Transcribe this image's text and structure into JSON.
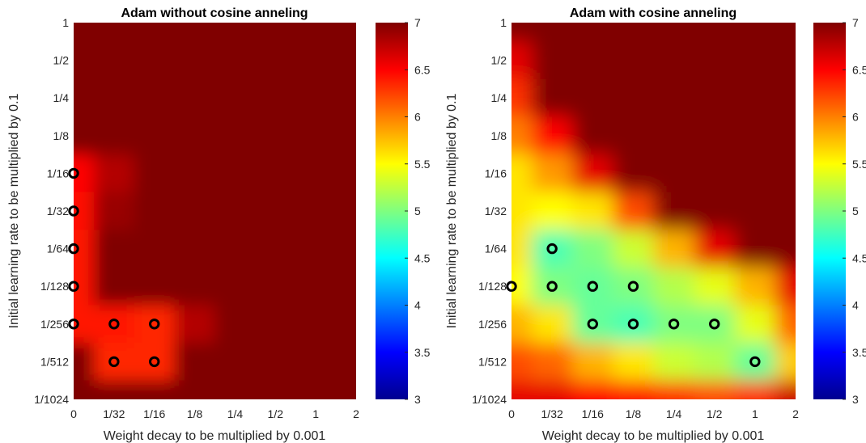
{
  "chart_data": [
    {
      "type": "heatmap",
      "title": "Adam without cosine anneling",
      "xlabel": "Weight decay to be multiplied by 0.001",
      "ylabel": "Initial learning rate to be multiplied by 0.1",
      "x_ticks": [
        "0",
        "1/32",
        "1/16",
        "1/8",
        "1/4",
        "1/2",
        "1",
        "2"
      ],
      "y_ticks": [
        "1",
        "1/2",
        "1/4",
        "1/8",
        "1/16",
        "1/32",
        "1/64",
        "1/128",
        "1/256",
        "1/512",
        "1/1024"
      ],
      "colorbar": {
        "ticks": [
          "3",
          "3.5",
          "4",
          "4.5",
          "5",
          "5.5",
          "6",
          "6.5",
          "7"
        ],
        "range": [
          3,
          7
        ],
        "colormap": "jet"
      },
      "grid": [
        [
          7.0,
          7.0,
          7.0,
          7.0,
          7.0,
          7.0,
          7.0,
          7.0
        ],
        [
          7.0,
          7.0,
          7.0,
          7.0,
          7.0,
          7.0,
          7.0,
          7.0
        ],
        [
          7.0,
          7.0,
          7.0,
          7.0,
          7.0,
          7.0,
          7.0,
          7.0
        ],
        [
          7.0,
          7.0,
          7.0,
          7.0,
          7.0,
          7.0,
          7.0,
          7.0
        ],
        [
          6.5,
          6.8,
          7.0,
          7.0,
          7.0,
          7.0,
          7.0,
          7.0
        ],
        [
          6.45,
          6.9,
          7.0,
          7.0,
          7.0,
          7.0,
          7.0,
          7.0
        ],
        [
          6.4,
          7.0,
          7.0,
          7.0,
          7.0,
          7.0,
          7.0,
          7.0
        ],
        [
          6.4,
          7.0,
          7.0,
          7.0,
          7.0,
          7.0,
          7.0,
          7.0
        ],
        [
          6.4,
          6.4,
          6.35,
          6.8,
          7.0,
          7.0,
          7.0,
          7.0
        ],
        [
          7.0,
          6.35,
          6.35,
          7.0,
          7.0,
          7.0,
          7.0,
          7.0
        ],
        [
          7.0,
          7.0,
          7.0,
          7.0,
          7.0,
          7.0,
          7.0,
          7.0
        ]
      ],
      "markers": [
        [
          0,
          4
        ],
        [
          0,
          5
        ],
        [
          0,
          6
        ],
        [
          0,
          7
        ],
        [
          0,
          8
        ],
        [
          1,
          8
        ],
        [
          2,
          8
        ],
        [
          1,
          9
        ],
        [
          2,
          9
        ]
      ]
    },
    {
      "type": "heatmap",
      "title": "Adam with cosine anneling",
      "xlabel": "Weight decay to be multiplied by 0.001",
      "ylabel": "Initial learning rate to be multiplied by 0.1",
      "x_ticks": [
        "0",
        "1/32",
        "1/16",
        "1/8",
        "1/4",
        "1/2",
        "1",
        "2"
      ],
      "y_ticks": [
        "1",
        "1/2",
        "1/4",
        "1/8",
        "1/16",
        "1/32",
        "1/64",
        "1/128",
        "1/256",
        "1/512",
        "1/1024"
      ],
      "colorbar": {
        "ticks": [
          "3",
          "3.5",
          "4",
          "4.5",
          "5",
          "5.5",
          "6",
          "6.5",
          "7"
        ],
        "range": [
          3,
          7
        ],
        "colormap": "jet"
      },
      "grid": [
        [
          7.0,
          7.0,
          7.0,
          7.0,
          7.0,
          7.0,
          7.0,
          7.0
        ],
        [
          6.6,
          7.0,
          7.0,
          7.0,
          7.0,
          7.0,
          7.0,
          7.0
        ],
        [
          6.3,
          7.0,
          7.0,
          7.0,
          7.0,
          7.0,
          7.0,
          7.0
        ],
        [
          6.0,
          6.5,
          7.0,
          7.0,
          7.0,
          7.0,
          7.0,
          7.0
        ],
        [
          5.6,
          5.9,
          6.6,
          7.0,
          7.0,
          7.0,
          7.0,
          7.0
        ],
        [
          5.6,
          5.5,
          5.6,
          6.2,
          7.0,
          7.0,
          7.0,
          7.0
        ],
        [
          5.6,
          4.8,
          5.0,
          5.3,
          5.8,
          6.6,
          7.0,
          7.0
        ],
        [
          5.5,
          5.0,
          4.9,
          5.0,
          5.2,
          5.4,
          5.8,
          6.6
        ],
        [
          5.8,
          5.6,
          4.9,
          4.8,
          5.0,
          5.0,
          5.4,
          6.1
        ],
        [
          6.2,
          6.1,
          5.8,
          5.6,
          5.3,
          5.2,
          4.9,
          5.7
        ],
        [
          6.6,
          6.6,
          6.5,
          6.4,
          6.3,
          6.2,
          6.3,
          6.7
        ]
      ],
      "markers": [
        [
          1,
          6
        ],
        [
          0,
          7
        ],
        [
          1,
          7
        ],
        [
          2,
          7
        ],
        [
          3,
          7
        ],
        [
          2,
          8
        ],
        [
          3,
          8
        ],
        [
          4,
          8
        ],
        [
          5,
          8
        ],
        [
          6,
          9
        ]
      ]
    }
  ]
}
